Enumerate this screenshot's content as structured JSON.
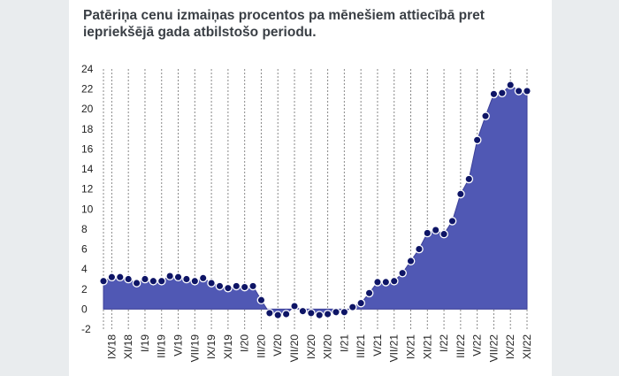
{
  "colors": {
    "background": "#e9ecee",
    "card": "#ffffff",
    "area_fill": "#5058b4",
    "area_stroke": "#3b3f98",
    "marker_fill": "#0e1566",
    "marker_stroke": "#ffffff",
    "grid": "#888888"
  },
  "chart_data": {
    "type": "area",
    "title": "Patēriņa cenu izmaiņas procentos pa mēnešiem attiecībā pret iepriekšējā gada atbilstošo periodu.",
    "xlabel": "",
    "ylabel": "",
    "ylim": [
      -2,
      24
    ],
    "yticks": [
      -2,
      0,
      2,
      4,
      6,
      8,
      10,
      12,
      14,
      16,
      18,
      20,
      22,
      24
    ],
    "grid": "vertical-dashed",
    "categories": [
      "VIII/18",
      "IX/18",
      "X/18",
      "XI/18",
      "XII/18",
      "I/19",
      "II/19",
      "III/19",
      "IV/19",
      "V/19",
      "VI/19",
      "VII/19",
      "VIII/19",
      "IX/19",
      "X/19",
      "XI/19",
      "XII/19",
      "I/20",
      "II/20",
      "III/20",
      "IV/20",
      "V/20",
      "VI/20",
      "VII/20",
      "VIII/20",
      "IX/20",
      "X/20",
      "XI/20",
      "XII/20",
      "I/21",
      "II/21",
      "III/21",
      "IV/21",
      "V/21",
      "VI/21",
      "VII/21",
      "VIII/21",
      "IX/21",
      "X/21",
      "XI/21",
      "XII/21",
      "I/22",
      "II/22",
      "III/22",
      "IV/22",
      "V/22",
      "VI/22",
      "VII/22",
      "VIII/22",
      "IX/22",
      "X/22",
      "XI/22"
    ],
    "tick_labels": [
      "IX/18",
      "XI/18",
      "I/19",
      "III/19",
      "V/19",
      "VII/19",
      "IX/19",
      "XI/19",
      "I/20",
      "III/20",
      "V/20",
      "VII/20",
      "IX/20",
      "XI/20",
      "I/21",
      "III/21",
      "V/21",
      "VII/21",
      "IX/21",
      "XI/21",
      "I/22",
      "III/22",
      "V/22",
      "VII/22",
      "IX/22",
      "XI/22"
    ],
    "series": [
      {
        "name": "Patēriņa cenu izmaiņas, %",
        "values": [
          2.8,
          3.2,
          3.2,
          3.0,
          2.6,
          3.0,
          2.8,
          2.8,
          3.3,
          3.2,
          3.0,
          2.8,
          3.1,
          2.6,
          2.3,
          2.1,
          2.3,
          2.2,
          2.3,
          0.9,
          -0.4,
          -0.6,
          -0.5,
          0.3,
          -0.2,
          -0.4,
          -0.6,
          -0.5,
          -0.3,
          -0.3,
          0.2,
          0.6,
          1.6,
          2.7,
          2.7,
          2.8,
          3.6,
          4.8,
          6.0,
          7.6,
          7.9,
          7.5,
          8.8,
          11.5,
          13.0,
          16.9,
          19.3,
          21.5,
          21.6,
          22.4,
          21.8,
          21.8
        ]
      }
    ]
  }
}
